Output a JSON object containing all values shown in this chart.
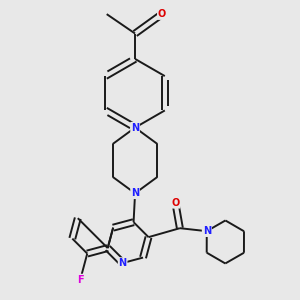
{
  "bg_color": "#e8e8e8",
  "bond_color": "#1a1a1a",
  "N_color": "#2020ff",
  "O_color": "#dd0000",
  "F_color": "#dd00dd",
  "bond_width": 1.4,
  "figsize": [
    3.0,
    3.0
  ],
  "dpi": 100,
  "xlim": [
    0,
    10
  ],
  "ylim": [
    0,
    10
  ]
}
